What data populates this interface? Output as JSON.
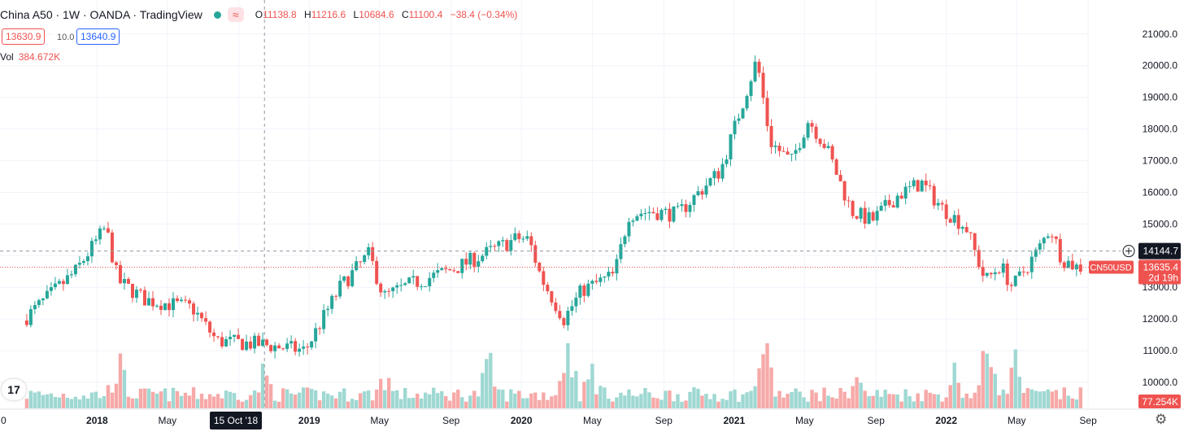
{
  "legend": {
    "symbol": "China A50 · 1W · OANDA · TradingView",
    "open_label": "O",
    "open": "11138.8",
    "high_label": "H",
    "high": "11216.6",
    "low_label": "L",
    "low": "10684.6",
    "close_label": "C",
    "close": "11100.4",
    "change": "−38.4 (−0.34%)"
  },
  "trade": {
    "sell": "13630.9",
    "spread": "10.0",
    "buy": "13640.9"
  },
  "volume": {
    "label": "Vol",
    "value": "384.672K"
  },
  "logo": "17",
  "colors": {
    "up": "#26a69a",
    "down": "#ef5350",
    "up_vol": "#9fd8d2",
    "down_vol": "#f6a9a8"
  },
  "chart_data": {
    "type": "candlestick",
    "symbol": "CN50USD",
    "timeframe": "1W",
    "y_ticks": [
      "10000.0",
      "11000.0",
      "12000.0",
      "13000.0",
      "14000.0",
      "15000.0",
      "16000.0",
      "17000.0",
      "18000.0",
      "19000.0",
      "20000.0",
      "21000.0"
    ],
    "ylim": [
      9400,
      21500
    ],
    "x_labels": [
      "2018",
      "May",
      "Sep",
      "15 Oct '18",
      "2019",
      "May",
      "Sep",
      "2020",
      "May",
      "Sep",
      "2021",
      "May",
      "Sep",
      "2022",
      "May",
      "Sep"
    ],
    "crosshair": {
      "date_label": "15 Oct '18",
      "price_label": "14144.7",
      "price": 14144.7
    },
    "last_price": {
      "symbol_label": "CN50USD",
      "price_label": "13635.4",
      "countdown": "2d 19h",
      "price": 13635.4
    },
    "last_volume_label": "77.254K",
    "anchors": [
      [
        "2017-09-01",
        11950
      ],
      [
        "2017-12-01",
        13500
      ],
      [
        "2018-01-22",
        14900
      ],
      [
        "2018-02-12",
        13200
      ],
      [
        "2018-04-01",
        12600
      ],
      [
        "2018-06-20",
        12350
      ],
      [
        "2018-08-01",
        11300
      ],
      [
        "2018-10-15",
        11200
      ],
      [
        "2018-12-31",
        11000
      ],
      [
        "2019-03-01",
        13000
      ],
      [
        "2019-04-20",
        14050
      ],
      [
        "2019-05-15",
        12700
      ],
      [
        "2019-07-01",
        13100
      ],
      [
        "2019-09-15",
        13600
      ],
      [
        "2019-12-31",
        14550
      ],
      [
        "2020-01-20",
        14500
      ],
      [
        "2020-02-10",
        13300
      ],
      [
        "2020-03-20",
        12000
      ],
      [
        "2020-04-20",
        12900
      ],
      [
        "2020-06-15",
        13400
      ],
      [
        "2020-07-10",
        15300
      ],
      [
        "2020-08-15",
        15400
      ],
      [
        "2020-10-01",
        15300
      ],
      [
        "2020-12-15",
        16700
      ],
      [
        "2021-02-15",
        20200
      ],
      [
        "2021-03-10",
        17600
      ],
      [
        "2021-04-15",
        16950
      ],
      [
        "2021-05-15",
        18300
      ],
      [
        "2021-06-15",
        17400
      ],
      [
        "2021-07-28",
        15400
      ],
      [
        "2021-09-01",
        15100
      ],
      [
        "2021-10-15",
        15900
      ],
      [
        "2021-11-25",
        16300
      ],
      [
        "2021-12-31",
        15500
      ],
      [
        "2022-02-10",
        14900
      ],
      [
        "2022-03-15",
        13200
      ],
      [
        "2022-04-10",
        13700
      ],
      [
        "2022-05-01",
        13000
      ],
      [
        "2022-06-15",
        14200
      ],
      [
        "2022-07-05",
        14900
      ],
      [
        "2022-07-25",
        13900
      ],
      [
        "2022-08-20",
        13635
      ]
    ],
    "volume_bursts": [
      [
        "2018-02-05",
        3.2
      ],
      [
        "2018-10-15",
        2.5
      ],
      [
        "2019-05-10",
        2.5
      ],
      [
        "2019-11-05",
        3.0
      ],
      [
        "2020-03-20",
        5.0
      ],
      [
        "2020-05-01",
        2.7
      ],
      [
        "2021-02-20",
        4.5
      ],
      [
        "2021-07-28",
        2.4
      ],
      [
        "2022-03-15",
        4.6
      ],
      [
        "2022-04-28",
        3.2
      ],
      [
        "2022-01-15",
        2.5
      ]
    ]
  }
}
